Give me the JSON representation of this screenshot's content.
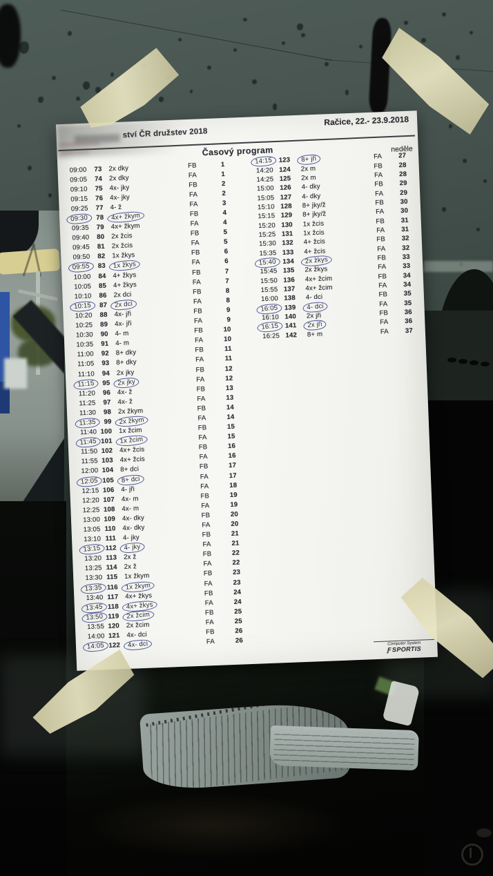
{
  "document": {
    "event_title_visible": "ství ČR družstev 2018",
    "location_date": "Račice,  22.- 23.9.2018",
    "program_title": "Časový program",
    "day_label": "neděle",
    "footer": {
      "line1": "Computer System",
      "brand": "SPORTIS",
      "brand_icon": "Ƒ"
    },
    "left_rows": [
      {
        "time": "09:00",
        "no": "73",
        "cls": "2x dky",
        "ph": "FB",
        "sec": "1",
        "tc": false,
        "cc": false
      },
      {
        "time": "09:05",
        "no": "74",
        "cls": "2x dky",
        "ph": "FA",
        "sec": "1",
        "tc": false,
        "cc": false
      },
      {
        "time": "09:10",
        "no": "75",
        "cls": "4x- jky",
        "ph": "FB",
        "sec": "2",
        "tc": false,
        "cc": false
      },
      {
        "time": "09:15",
        "no": "76",
        "cls": "4x- jky",
        "ph": "FA",
        "sec": "2",
        "tc": false,
        "cc": false
      },
      {
        "time": "09:25",
        "no": "77",
        "cls": "4- ž",
        "ph": "FA",
        "sec": "3",
        "tc": false,
        "cc": false
      },
      {
        "time": "09:30",
        "no": "78",
        "cls": "4x+ žkym",
        "ph": "FB",
        "sec": "4",
        "tc": true,
        "cc": true
      },
      {
        "time": "09:35",
        "no": "79",
        "cls": "4x+ žkym",
        "ph": "FA",
        "sec": "4",
        "tc": false,
        "cc": false
      },
      {
        "time": "09:40",
        "no": "80",
        "cls": "2x žcis",
        "ph": "FB",
        "sec": "5",
        "tc": false,
        "cc": false
      },
      {
        "time": "09:45",
        "no": "81",
        "cls": "2x žcis",
        "ph": "FA",
        "sec": "5",
        "tc": false,
        "cc": false
      },
      {
        "time": "09:50",
        "no": "82",
        "cls": "1x žkys",
        "ph": "FB",
        "sec": "6",
        "tc": false,
        "cc": false
      },
      {
        "time": "09:55",
        "no": "83",
        "cls": "1x žkys",
        "ph": "FA",
        "sec": "6",
        "tc": true,
        "cc": true
      },
      {
        "time": "10:00",
        "no": "84",
        "cls": "4+ žkys",
        "ph": "FB",
        "sec": "7",
        "tc": false,
        "cc": false
      },
      {
        "time": "10:05",
        "no": "85",
        "cls": "4+ žkys",
        "ph": "FA",
        "sec": "7",
        "tc": false,
        "cc": false
      },
      {
        "time": "10:10",
        "no": "86",
        "cls": "2x dci",
        "ph": "FB",
        "sec": "8",
        "tc": false,
        "cc": false
      },
      {
        "time": "10:15",
        "no": "87",
        "cls": "2x dci",
        "ph": "FA",
        "sec": "8",
        "tc": true,
        "cc": true
      },
      {
        "time": "10:20",
        "no": "88",
        "cls": "4x- jři",
        "ph": "FB",
        "sec": "9",
        "tc": false,
        "cc": false
      },
      {
        "time": "10:25",
        "no": "89",
        "cls": "4x- jři",
        "ph": "FA",
        "sec": "9",
        "tc": false,
        "cc": false
      },
      {
        "time": "10:30",
        "no": "90",
        "cls": "4- m",
        "ph": "FB",
        "sec": "10",
        "tc": false,
        "cc": false
      },
      {
        "time": "10:35",
        "no": "91",
        "cls": "4- m",
        "ph": "FA",
        "sec": "10",
        "tc": false,
        "cc": false
      },
      {
        "time": "11:00",
        "no": "92",
        "cls": "8+ dky",
        "ph": "FB",
        "sec": "11",
        "tc": false,
        "cc": false
      },
      {
        "time": "11:05",
        "no": "93",
        "cls": "8+ dky",
        "ph": "FA",
        "sec": "11",
        "tc": false,
        "cc": false
      },
      {
        "time": "11:10",
        "no": "94",
        "cls": "2x jky",
        "ph": "FB",
        "sec": "12",
        "tc": false,
        "cc": false
      },
      {
        "time": "11:15",
        "no": "95",
        "cls": "2x jky",
        "ph": "FA",
        "sec": "12",
        "tc": true,
        "cc": true
      },
      {
        "time": "11:20",
        "no": "96",
        "cls": "4x- ž",
        "ph": "FB",
        "sec": "13",
        "tc": false,
        "cc": false
      },
      {
        "time": "11:25",
        "no": "97",
        "cls": "4x- ž",
        "ph": "FA",
        "sec": "13",
        "tc": false,
        "cc": false
      },
      {
        "time": "11:30",
        "no": "98",
        "cls": "2x žkym",
        "ph": "FB",
        "sec": "14",
        "tc": false,
        "cc": false
      },
      {
        "time": "11:35",
        "no": "99",
        "cls": "2x žkym",
        "ph": "FA",
        "sec": "14",
        "tc": true,
        "cc": true
      },
      {
        "time": "11:40",
        "no": "100",
        "cls": "1x žcim",
        "ph": "FB",
        "sec": "15",
        "tc": false,
        "cc": false
      },
      {
        "time": "11:45",
        "no": "101",
        "cls": "1x žcim",
        "ph": "FA",
        "sec": "15",
        "tc": true,
        "cc": true
      },
      {
        "time": "11:50",
        "no": "102",
        "cls": "4x+ žcis",
        "ph": "FB",
        "sec": "16",
        "tc": false,
        "cc": false
      },
      {
        "time": "11:55",
        "no": "103",
        "cls": "4x+ žcis",
        "ph": "FA",
        "sec": "16",
        "tc": false,
        "cc": false
      },
      {
        "time": "12:00",
        "no": "104",
        "cls": "8+ dci",
        "ph": "FB",
        "sec": "17",
        "tc": false,
        "cc": false
      },
      {
        "time": "12:05",
        "no": "105",
        "cls": "8+ dci",
        "ph": "FA",
        "sec": "17",
        "tc": true,
        "cc": true
      },
      {
        "time": "12:15",
        "no": "106",
        "cls": "4- jři",
        "ph": "FA",
        "sec": "18",
        "tc": false,
        "cc": false
      },
      {
        "time": "12:20",
        "no": "107",
        "cls": "4x- m",
        "ph": "FB",
        "sec": "19",
        "tc": false,
        "cc": false
      },
      {
        "time": "12:25",
        "no": "108",
        "cls": "4x- m",
        "ph": "FA",
        "sec": "19",
        "tc": false,
        "cc": false
      },
      {
        "time": "13:00",
        "no": "109",
        "cls": "4x- dky",
        "ph": "FB",
        "sec": "20",
        "tc": false,
        "cc": false
      },
      {
        "time": "13:05",
        "no": "110",
        "cls": "4x- dky",
        "ph": "FA",
        "sec": "20",
        "tc": false,
        "cc": false
      },
      {
        "time": "13:10",
        "no": "111",
        "cls": "4- jky",
        "ph": "FB",
        "sec": "21",
        "tc": false,
        "cc": false
      },
      {
        "time": "13:15",
        "no": "112",
        "cls": "4- jky",
        "ph": "FA",
        "sec": "21",
        "tc": true,
        "cc": true
      },
      {
        "time": "13:20",
        "no": "113",
        "cls": "2x ž",
        "ph": "FB",
        "sec": "22",
        "tc": false,
        "cc": false
      },
      {
        "time": "13:25",
        "no": "114",
        "cls": "2x ž",
        "ph": "FA",
        "sec": "22",
        "tc": false,
        "cc": false
      },
      {
        "time": "13:30",
        "no": "115",
        "cls": "1x žkym",
        "ph": "FB",
        "sec": "23",
        "tc": false,
        "cc": false
      },
      {
        "time": "13:35",
        "no": "116",
        "cls": "1x žkym",
        "ph": "FA",
        "sec": "23",
        "tc": true,
        "cc": true
      },
      {
        "time": "13:40",
        "no": "117",
        "cls": "4x+ žkys",
        "ph": "FB",
        "sec": "24",
        "tc": false,
        "cc": false
      },
      {
        "time": "13:45",
        "no": "118",
        "cls": "4x+ žkys",
        "ph": "FA",
        "sec": "24",
        "tc": true,
        "cc": true
      },
      {
        "time": "13:50",
        "no": "119",
        "cls": "2x žcim",
        "ph": "FB",
        "sec": "25",
        "tc": true,
        "cc": true
      },
      {
        "time": "13:55",
        "no": "120",
        "cls": "2x žcim",
        "ph": "FA",
        "sec": "25",
        "tc": false,
        "cc": false
      },
      {
        "time": "14:00",
        "no": "121",
        "cls": "4x- dci",
        "ph": "FB",
        "sec": "26",
        "tc": false,
        "cc": false
      },
      {
        "time": "14:05",
        "no": "122",
        "cls": "4x- dci",
        "ph": "FA",
        "sec": "26",
        "tc": true,
        "cc": true
      }
    ],
    "right_rows": [
      {
        "time": "14:15",
        "no": "123",
        "cls": "8+ jři",
        "ph": "FA",
        "sec": "27",
        "tc": true,
        "cc": true
      },
      {
        "time": "14:20",
        "no": "124",
        "cls": "2x m",
        "ph": "FB",
        "sec": "28",
        "tc": false,
        "cc": false
      },
      {
        "time": "14:25",
        "no": "125",
        "cls": "2x m",
        "ph": "FA",
        "sec": "28",
        "tc": false,
        "cc": false
      },
      {
        "time": "15:00",
        "no": "126",
        "cls": "4- dky",
        "ph": "FB",
        "sec": "29",
        "tc": false,
        "cc": false
      },
      {
        "time": "15:05",
        "no": "127",
        "cls": "4- dky",
        "ph": "FA",
        "sec": "29",
        "tc": false,
        "cc": false
      },
      {
        "time": "15:10",
        "no": "128",
        "cls": "8+ jky/ž",
        "ph": "FB",
        "sec": "30",
        "tc": false,
        "cc": false
      },
      {
        "time": "15:15",
        "no": "129",
        "cls": "8+ jky/ž",
        "ph": "FA",
        "sec": "30",
        "tc": false,
        "cc": false
      },
      {
        "time": "15:20",
        "no": "130",
        "cls": "1x žcis",
        "ph": "FB",
        "sec": "31",
        "tc": false,
        "cc": false
      },
      {
        "time": "15:25",
        "no": "131",
        "cls": "1x žcis",
        "ph": "FA",
        "sec": "31",
        "tc": false,
        "cc": false
      },
      {
        "time": "15:30",
        "no": "132",
        "cls": "4+ žcis",
        "ph": "FB",
        "sec": "32",
        "tc": false,
        "cc": false
      },
      {
        "time": "15:35",
        "no": "133",
        "cls": "4+ žcis",
        "ph": "FA",
        "sec": "32",
        "tc": false,
        "cc": false
      },
      {
        "time": "15:40",
        "no": "134",
        "cls": "2x žkys",
        "ph": "FB",
        "sec": "33",
        "tc": true,
        "cc": true
      },
      {
        "time": "15:45",
        "no": "135",
        "cls": "2x žkys",
        "ph": "FA",
        "sec": "33",
        "tc": false,
        "cc": false
      },
      {
        "time": "15:50",
        "no": "136",
        "cls": "4x+ žcim",
        "ph": "FB",
        "sec": "34",
        "tc": false,
        "cc": false
      },
      {
        "time": "15:55",
        "no": "137",
        "cls": "4x+ žcim",
        "ph": "FA",
        "sec": "34",
        "tc": false,
        "cc": false
      },
      {
        "time": "16:00",
        "no": "138",
        "cls": "4- dci",
        "ph": "FB",
        "sec": "35",
        "tc": false,
        "cc": false
      },
      {
        "time": "16:05",
        "no": "139",
        "cls": "4- dci",
        "ph": "FA",
        "sec": "35",
        "tc": true,
        "cc": true
      },
      {
        "time": "16:10",
        "no": "140",
        "cls": "2x jři",
        "ph": "FB",
        "sec": "36",
        "tc": false,
        "cc": false
      },
      {
        "time": "16:15",
        "no": "141",
        "cls": "2x jři",
        "ph": "FA",
        "sec": "36",
        "tc": true,
        "cc": true
      },
      {
        "time": "16:25",
        "no": "142",
        "cls": "8+ m",
        "ph": "FA",
        "sec": "37",
        "tc": false,
        "cc": false
      }
    ]
  },
  "colors": {
    "pen_blue": "#2f3c8c",
    "tape_beige": "#ded9b4",
    "paper_white": "#f5f5f1",
    "glass_green": "#47534f"
  }
}
